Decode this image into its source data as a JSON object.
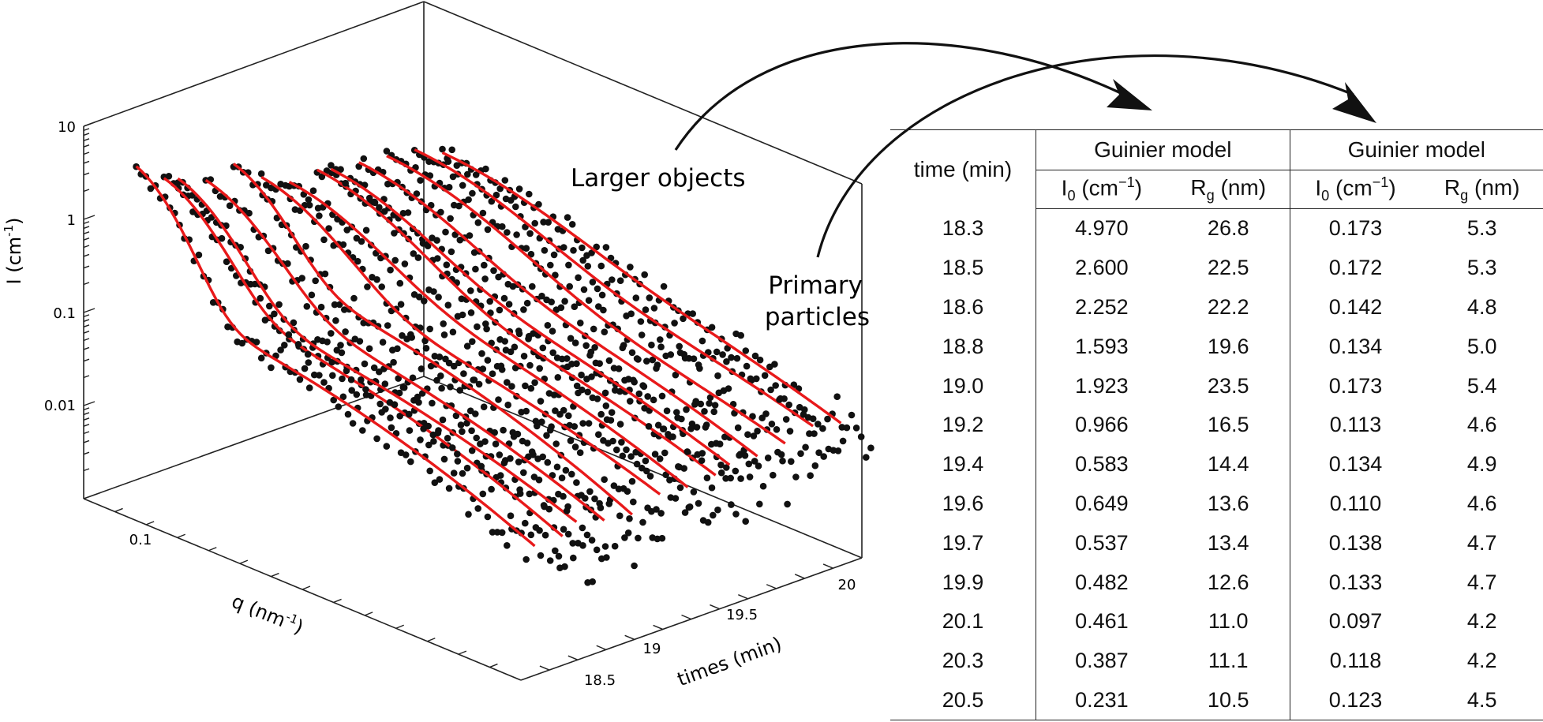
{
  "chart_data": {
    "type": "scatter",
    "subtype": "3d-waterfall",
    "yaxis_label": "I (cm",
    "yaxis_label_sup": "-1",
    "yaxis_label_end": ")",
    "yaxis_ticks": [
      "10",
      "1",
      "0.1",
      "0.01"
    ],
    "qaxis_label": "q (nm",
    "qaxis_label_sup": "-1",
    "qaxis_label_end": ")",
    "qaxis_ticks": [
      "0.1"
    ],
    "taxis_label": "times (min)",
    "taxis_ticks": [
      "18.5",
      "19",
      "19.5",
      "20"
    ],
    "z_scale": "log",
    "z_range": [
      0.001,
      10
    ],
    "marker_color": "#111111",
    "fit_color": "#e8191a",
    "annotations": {
      "larger": "Larger objects",
      "primary_1": "Primary",
      "primary_2": "particles"
    },
    "curves": [
      {
        "time": 18.3,
        "I_larger": 4.97,
        "Rg_larger": 26.8,
        "I_primary": 0.173,
        "Rg_primary": 5.3
      },
      {
        "time": 18.5,
        "I_larger": 2.6,
        "Rg_larger": 22.5,
        "I_primary": 0.172,
        "Rg_primary": 5.3
      },
      {
        "time": 18.6,
        "I_larger": 2.252,
        "Rg_larger": 22.2,
        "I_primary": 0.142,
        "Rg_primary": 4.8
      },
      {
        "time": 18.8,
        "I_larger": 1.593,
        "Rg_larger": 19.6,
        "I_primary": 0.134,
        "Rg_primary": 5.0
      },
      {
        "time": 19.0,
        "I_larger": 1.923,
        "Rg_larger": 23.5,
        "I_primary": 0.173,
        "Rg_primary": 5.4
      },
      {
        "time": 19.2,
        "I_larger": 0.966,
        "Rg_larger": 16.5,
        "I_primary": 0.113,
        "Rg_primary": 4.6
      },
      {
        "time": 19.4,
        "I_larger": 0.583,
        "Rg_larger": 14.4,
        "I_primary": 0.134,
        "Rg_primary": 4.9
      },
      {
        "time": 19.6,
        "I_larger": 0.649,
        "Rg_larger": 13.6,
        "I_primary": 0.11,
        "Rg_primary": 4.6
      },
      {
        "time": 19.7,
        "I_larger": 0.537,
        "Rg_larger": 13.4,
        "I_primary": 0.138,
        "Rg_primary": 4.7
      },
      {
        "time": 19.9,
        "I_larger": 0.482,
        "Rg_larger": 12.6,
        "I_primary": 0.133,
        "Rg_primary": 4.7
      },
      {
        "time": 20.1,
        "I_larger": 0.461,
        "Rg_larger": 11.0,
        "I_primary": 0.097,
        "Rg_primary": 4.2
      },
      {
        "time": 20.3,
        "I_larger": 0.387,
        "Rg_larger": 11.1,
        "I_primary": 0.118,
        "Rg_primary": 4.2
      },
      {
        "time": 20.5,
        "I_larger": 0.231,
        "Rg_larger": 10.5,
        "I_primary": 0.123,
        "Rg_primary": 4.5
      }
    ]
  },
  "table": {
    "col_time": "time (min)",
    "group_1": "Guinier model",
    "group_2": "Guinier model",
    "i0_sym": "I",
    "i0_sub": "0",
    "i0_unit": " (cm",
    "i0_sup": "−1",
    "i0_end": ")",
    "rg_sym": "R",
    "rg_sub": "g",
    "rg_unit": " (nm)",
    "rows": [
      [
        "18.3",
        "4.970",
        "26.8",
        "0.173",
        "5.3"
      ],
      [
        "18.5",
        "2.600",
        "22.5",
        "0.172",
        "5.3"
      ],
      [
        "18.6",
        "2.252",
        "22.2",
        "0.142",
        "4.8"
      ],
      [
        "18.8",
        "1.593",
        "19.6",
        "0.134",
        "5.0"
      ],
      [
        "19.0",
        "1.923",
        "23.5",
        "0.173",
        "5.4"
      ],
      [
        "19.2",
        "0.966",
        "16.5",
        "0.113",
        "4.6"
      ],
      [
        "19.4",
        "0.583",
        "14.4",
        "0.134",
        "4.9"
      ],
      [
        "19.6",
        "0.649",
        "13.6",
        "0.110",
        "4.6"
      ],
      [
        "19.7",
        "0.537",
        "13.4",
        "0.138",
        "4.7"
      ],
      [
        "19.9",
        "0.482",
        "12.6",
        "0.133",
        "4.7"
      ],
      [
        "20.1",
        "0.461",
        "11.0",
        "0.097",
        "4.2"
      ],
      [
        "20.3",
        "0.387",
        "11.1",
        "0.118",
        "4.2"
      ],
      [
        "20.5",
        "0.231",
        "10.5",
        "0.123",
        "4.5"
      ]
    ]
  }
}
